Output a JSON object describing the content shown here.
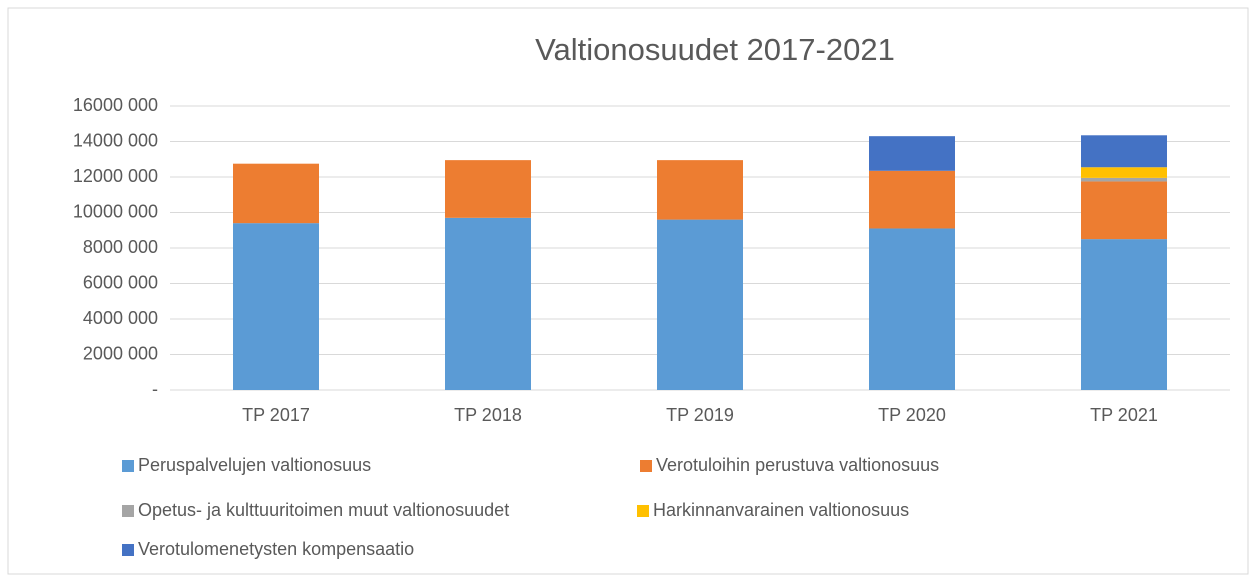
{
  "chart_data": {
    "type": "stacked_bar",
    "title": "Valtionosuudet 2017-2021",
    "categories": [
      "TP 2017",
      "TP 2018",
      "TP 2019",
      "TP 2020",
      "TP 2021"
    ],
    "series": [
      {
        "name": "Peruspalvelujen valtionosuus",
        "color": "#5b9bd5",
        "values": [
          9400000,
          9700000,
          9600000,
          9100000,
          8500000
        ]
      },
      {
        "name": "Verotuloihin perustuva valtionosuus",
        "color": "#ed7d31",
        "values": [
          3350000,
          3250000,
          3350000,
          3250000,
          3250000
        ]
      },
      {
        "name": "Opetus- ja kulttuuritoimen muut valtionosuudet",
        "color": "#a5a5a5",
        "values": [
          0,
          0,
          0,
          0,
          200000
        ]
      },
      {
        "name": "Harkinnanvarainen valtionosuus",
        "color": "#ffc000",
        "values": [
          0,
          0,
          0,
          0,
          600000
        ]
      },
      {
        "name": "Verotulomenetysten kompensaatio",
        "color": "#4472c4",
        "values": [
          0,
          0,
          0,
          1950000,
          1800000
        ]
      }
    ],
    "ylim": [
      0,
      16000000
    ],
    "yticks": [
      {
        "value": 0,
        "label": "-"
      },
      {
        "value": 2000000,
        "label": "2000 000"
      },
      {
        "value": 4000000,
        "label": "4000 000"
      },
      {
        "value": 6000000,
        "label": "6000 000"
      },
      {
        "value": 8000000,
        "label": "8000 000"
      },
      {
        "value": 10000000,
        "label": "10000 000"
      },
      {
        "value": 12000000,
        "label": "12000 000"
      },
      {
        "value": 14000000,
        "label": "14000 000"
      },
      {
        "value": 16000000,
        "label": "16000 000"
      }
    ],
    "grid": true
  }
}
